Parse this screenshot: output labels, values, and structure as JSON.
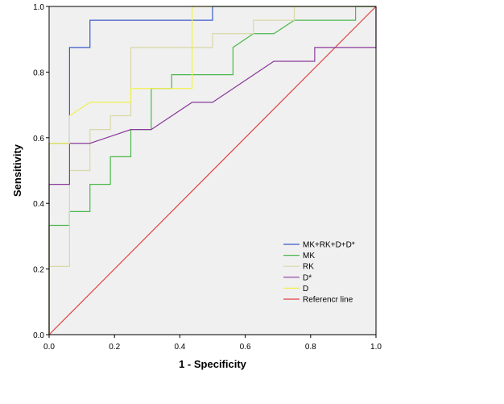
{
  "chart_data": {
    "type": "line",
    "title": "",
    "xlabel": "1 - Specificity",
    "ylabel": "Sensitivity",
    "xlim": [
      0,
      1
    ],
    "ylim": [
      0,
      1
    ],
    "x_ticks": [
      "0.0",
      "0.2",
      "0.4",
      "0.6",
      "0.8",
      "1.0"
    ],
    "y_ticks": [
      "0.0",
      "0.2",
      "0.4",
      "0.6",
      "0.8",
      "1.0"
    ],
    "background": "#f0f0f0",
    "legend_position": "lower-right",
    "series": [
      {
        "name": "MK+RK+D+D*",
        "color": "#3a5bc7",
        "points": [
          [
            0,
            0
          ],
          [
            0,
            0.583
          ],
          [
            0.0625,
            0.583
          ],
          [
            0.0625,
            0.875
          ],
          [
            0.125,
            0.875
          ],
          [
            0.125,
            0.958
          ],
          [
            0.5,
            0.958
          ],
          [
            0.5,
            1.0
          ],
          [
            1.0,
            1.0
          ]
        ]
      },
      {
        "name": "MK",
        "color": "#4cb84c",
        "points": [
          [
            0,
            0
          ],
          [
            0,
            0.333
          ],
          [
            0.0625,
            0.333
          ],
          [
            0.0625,
            0.375
          ],
          [
            0.125,
            0.375
          ],
          [
            0.125,
            0.458
          ],
          [
            0.1875,
            0.458
          ],
          [
            0.1875,
            0.542
          ],
          [
            0.25,
            0.542
          ],
          [
            0.25,
            0.625
          ],
          [
            0.3125,
            0.625
          ],
          [
            0.3125,
            0.75
          ],
          [
            0.375,
            0.75
          ],
          [
            0.375,
            0.792
          ],
          [
            0.5625,
            0.792
          ],
          [
            0.5625,
            0.875
          ],
          [
            0.625,
            0.917
          ],
          [
            0.6875,
            0.917
          ],
          [
            0.75,
            0.958
          ],
          [
            0.9375,
            0.958
          ],
          [
            0.9375,
            1.0
          ],
          [
            1.0,
            1.0
          ]
        ]
      },
      {
        "name": "RK",
        "color": "#d8d8a8",
        "points": [
          [
            0,
            0
          ],
          [
            0,
            0.208
          ],
          [
            0.0625,
            0.208
          ],
          [
            0.0625,
            0.5
          ],
          [
            0.125,
            0.5
          ],
          [
            0.125,
            0.625
          ],
          [
            0.1875,
            0.625
          ],
          [
            0.1875,
            0.667
          ],
          [
            0.25,
            0.667
          ],
          [
            0.25,
            0.875
          ],
          [
            0.4375,
            0.875
          ],
          [
            0.5,
            0.875
          ],
          [
            0.5,
            0.917
          ],
          [
            0.625,
            0.917
          ],
          [
            0.625,
            0.958
          ],
          [
            0.75,
            0.958
          ],
          [
            0.75,
            1.0
          ],
          [
            1.0,
            1.0
          ]
        ]
      },
      {
        "name": "D*",
        "color": "#8a3a9a",
        "points": [
          [
            0,
            0
          ],
          [
            0,
            0.458
          ],
          [
            0.0625,
            0.458
          ],
          [
            0.0625,
            0.583
          ],
          [
            0.125,
            0.583
          ],
          [
            0.25,
            0.625
          ],
          [
            0.3125,
            0.625
          ],
          [
            0.4375,
            0.708
          ],
          [
            0.5,
            0.708
          ],
          [
            0.6875,
            0.833
          ],
          [
            0.8125,
            0.833
          ],
          [
            0.8125,
            0.875
          ],
          [
            1.0,
            0.875
          ],
          [
            1.0,
            1.0
          ]
        ]
      },
      {
        "name": "D",
        "color": "#f0f050",
        "points": [
          [
            0,
            0
          ],
          [
            0,
            0.583
          ],
          [
            0.0625,
            0.583
          ],
          [
            0.0625,
            0.667
          ],
          [
            0.125,
            0.708
          ],
          [
            0.25,
            0.708
          ],
          [
            0.25,
            0.75
          ],
          [
            0.4375,
            0.75
          ],
          [
            0.4375,
            1.0
          ],
          [
            1.0,
            1.0
          ]
        ]
      },
      {
        "name": "Referencr line",
        "color": "#e04040",
        "points": [
          [
            0,
            0
          ],
          [
            1,
            1
          ]
        ]
      }
    ]
  }
}
